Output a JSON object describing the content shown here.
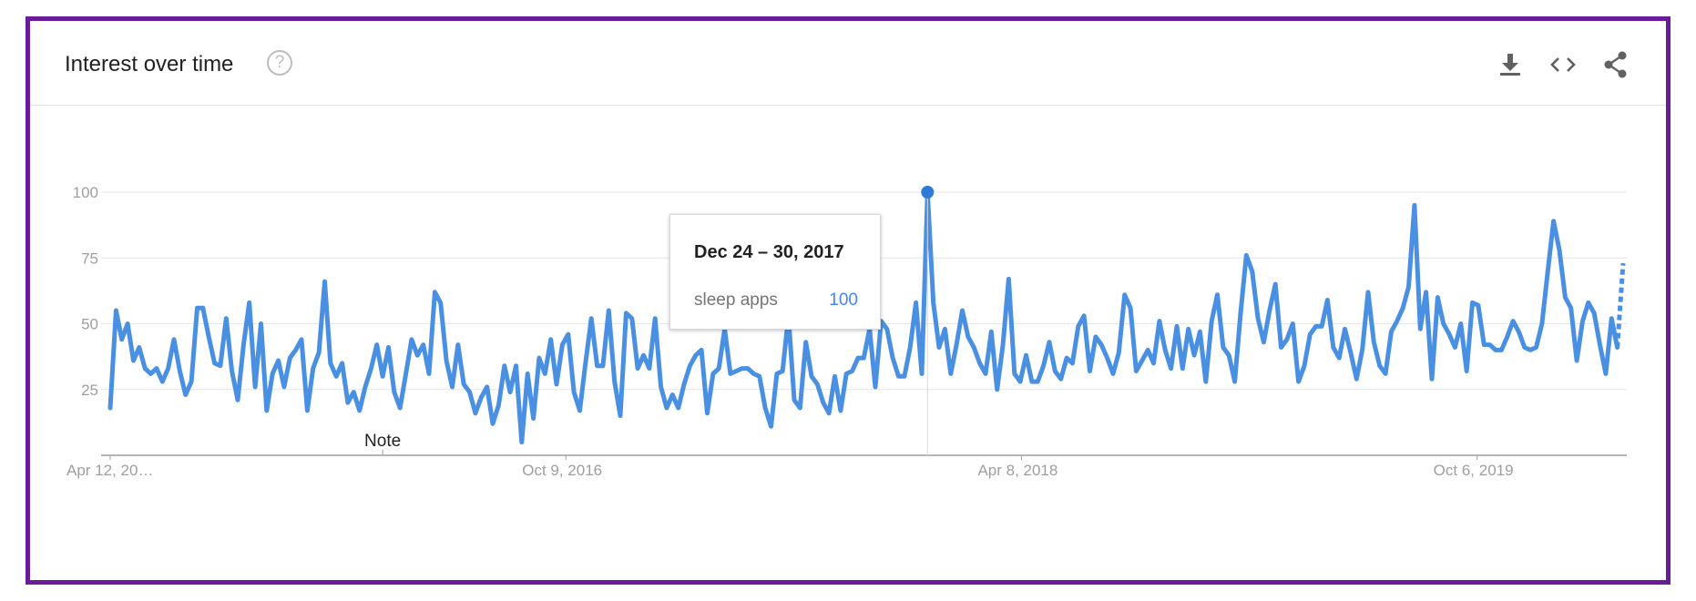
{
  "header": {
    "title": "Interest over time",
    "help_glyph": "?",
    "icons": [
      "help-icon",
      "download-icon",
      "embed-code-icon",
      "share-icon"
    ]
  },
  "colors": {
    "line": "#4a90e2",
    "frame": "#6a1b9a",
    "tooltip_value": "#4285f4"
  },
  "note_label": "Note",
  "tooltip": {
    "date": "Dec 24 – 30, 2017",
    "series": "sleep apps",
    "value": "100"
  },
  "chart_data": {
    "type": "line",
    "y_ticks": [
      25,
      50,
      75,
      100
    ],
    "ylim": [
      0,
      100
    ],
    "x_tick_labels": [
      "Apr 12, 20…",
      "Oct 9, 2016",
      "Apr 8, 2018",
      "Oct 6, 2019"
    ],
    "x": {
      "start": "2015-04-12",
      "end": "2020-04-05",
      "interval": "week"
    },
    "grid": true,
    "series": [
      {
        "values": [
          18,
          55,
          44,
          50,
          36,
          41,
          33,
          31,
          33,
          28,
          33,
          44,
          32,
          23,
          28,
          56,
          56,
          45,
          35,
          34,
          52,
          32,
          21,
          42,
          58,
          26,
          50,
          17,
          31,
          36,
          26,
          37,
          40,
          44,
          17,
          33,
          39,
          66,
          35,
          30,
          35,
          20,
          24,
          17,
          26,
          33,
          42,
          30,
          41,
          24,
          18,
          31,
          44,
          38,
          42,
          31,
          62,
          58,
          36,
          26,
          42,
          27,
          24,
          16,
          22,
          26,
          12,
          19,
          34,
          24,
          34,
          5,
          31,
          14,
          37,
          31,
          44,
          27,
          42,
          46,
          24,
          17,
          35,
          52,
          34,
          34,
          55,
          28,
          15,
          54,
          52,
          33,
          38,
          33,
          52,
          26,
          18,
          23,
          18,
          27,
          34,
          38,
          40,
          16,
          31,
          33,
          48,
          31,
          32,
          33,
          33,
          31,
          30,
          18,
          11,
          31,
          32,
          53,
          21,
          18,
          43,
          30,
          27,
          20,
          16,
          30,
          17,
          31,
          32,
          37,
          37,
          48,
          26,
          51,
          48,
          37,
          30,
          30,
          41,
          58,
          31,
          100,
          58,
          41,
          48,
          31,
          42,
          55,
          45,
          41,
          35,
          31,
          47,
          25,
          42,
          67,
          31,
          28,
          38,
          28,
          28,
          34,
          43,
          32,
          29,
          37,
          35,
          49,
          53,
          32,
          45,
          42,
          37,
          31,
          39,
          61,
          56,
          32,
          36,
          40,
          35,
          51,
          40,
          33,
          49,
          33,
          48,
          38,
          47,
          28,
          51,
          61,
          41,
          38,
          28,
          54,
          76,
          70,
          52,
          43,
          55,
          65,
          41,
          44,
          50,
          28,
          34,
          46,
          49,
          49,
          59,
          41,
          37,
          48,
          39,
          29,
          40,
          62,
          43,
          34,
          31,
          47,
          51,
          56,
          64,
          95,
          48,
          62,
          29,
          60,
          50,
          46,
          41,
          50,
          32,
          58,
          57,
          42,
          42,
          40,
          40,
          45,
          51,
          47,
          41,
          40,
          41,
          50,
          70,
          89,
          78,
          60,
          56,
          36,
          51,
          58,
          54,
          42,
          31,
          52,
          41,
          73
        ]
      }
    ],
    "partial_last_point": true,
    "highlight": {
      "date": "Dec 24 – 30, 2017",
      "value": 100
    }
  }
}
